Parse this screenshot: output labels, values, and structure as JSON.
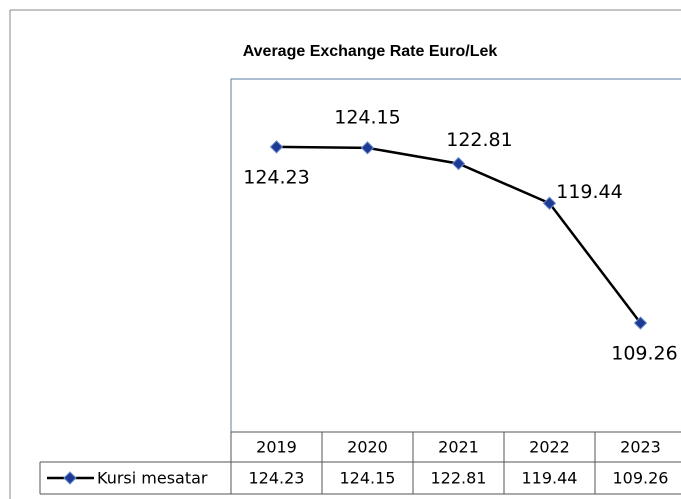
{
  "chart_data": {
    "type": "line",
    "title": "Average Exchange Rate  Euro/Lek",
    "categories": [
      "2019",
      "2020",
      "2021",
      "2022",
      "2023"
    ],
    "series": [
      {
        "name": "Kursi mesatar",
        "color": "#1f3a93",
        "line_color": "#000000",
        "values": [
          124.23,
          124.15,
          122.81,
          119.44,
          109.26
        ]
      }
    ],
    "ylim": [
      100,
      130
    ]
  }
}
